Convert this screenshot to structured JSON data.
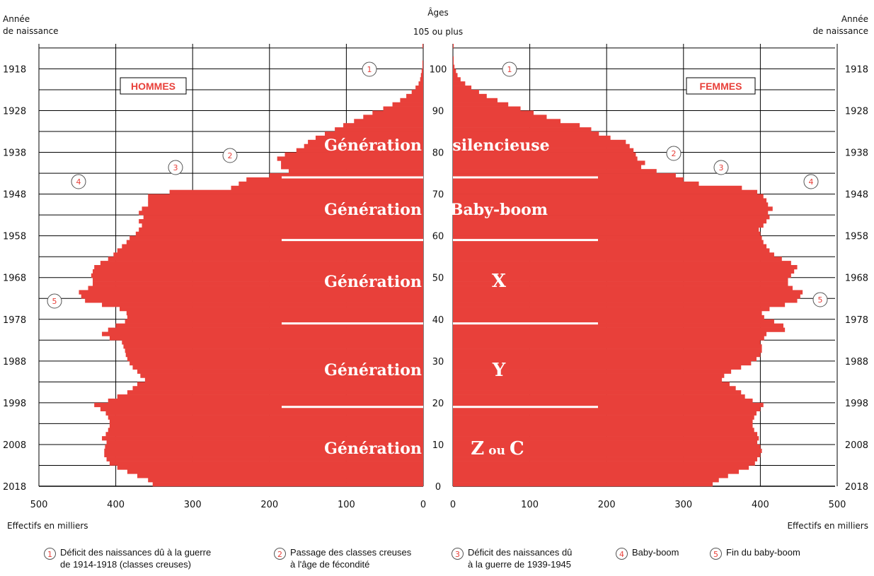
{
  "chart_data": {
    "type": "bar",
    "subtype": "population-pyramid",
    "color": "#e8403a",
    "left_label": "Année\nde naissance",
    "right_label": "Année\nde naissance",
    "center_top_label": "Âges",
    "center_top_sublabel": "105 ou plus",
    "x_label_left": "Effectifs en milliers",
    "x_label_right": "Effectifs en milliers",
    "x_ticks": [
      "500",
      "400",
      "300",
      "200",
      "100",
      "0"
    ],
    "x_ticks_right": [
      "0",
      "100",
      "200",
      "300",
      "400",
      "500"
    ],
    "xlim": [
      0,
      500
    ],
    "age_ticks": [
      "0",
      "10",
      "20",
      "30",
      "40",
      "50",
      "60",
      "70",
      "80",
      "90",
      "100"
    ],
    "year_ticks": [
      "2018",
      "2008",
      "1998",
      "1988",
      "1978",
      "1968",
      "1958",
      "1948",
      "1938",
      "1928",
      "1918"
    ],
    "ages": [
      0,
      1,
      2,
      3,
      4,
      5,
      6,
      7,
      8,
      9,
      10,
      11,
      12,
      13,
      14,
      15,
      16,
      17,
      18,
      19,
      20,
      21,
      22,
      23,
      24,
      25,
      26,
      27,
      28,
      29,
      30,
      31,
      32,
      33,
      34,
      35,
      36,
      37,
      38,
      39,
      40,
      41,
      42,
      43,
      44,
      45,
      46,
      47,
      48,
      49,
      50,
      51,
      52,
      53,
      54,
      55,
      56,
      57,
      58,
      59,
      60,
      61,
      62,
      63,
      64,
      65,
      66,
      67,
      68,
      69,
      70,
      71,
      72,
      73,
      74,
      75,
      76,
      77,
      78,
      79,
      80,
      81,
      82,
      83,
      84,
      85,
      86,
      87,
      88,
      89,
      90,
      91,
      92,
      93,
      94,
      95,
      96,
      97,
      98,
      99,
      100,
      101,
      102,
      103,
      104,
      105
    ],
    "series": [
      {
        "name": "HOMMES",
        "values": [
          352,
          358,
          372,
          385,
          398,
          408,
          412,
          415,
          415,
          414,
          412,
          418,
          413,
          410,
          408,
          408,
          410,
          413,
          420,
          428,
          410,
          398,
          385,
          378,
          372,
          362,
          368,
          372,
          378,
          382,
          385,
          387,
          388,
          390,
          392,
          408,
          418,
          410,
          400,
          388,
          385,
          386,
          395,
          418,
          440,
          445,
          448,
          436,
          430,
          430,
          432,
          430,
          428,
          420,
          410,
          403,
          398,
          392,
          386,
          382,
          374,
          370,
          366,
          370,
          364,
          370,
          366,
          358,
          358,
          358,
          330,
          250,
          240,
          230,
          200,
          175,
          185,
          185,
          190,
          180,
          165,
          155,
          150,
          140,
          128,
          115,
          104,
          90,
          78,
          66,
          52,
          40,
          30,
          22,
          15,
          10,
          6,
          4,
          3,
          2,
          1,
          1,
          0,
          0,
          0,
          1
        ]
      },
      {
        "name": "FEMMES",
        "values": [
          338,
          346,
          358,
          372,
          385,
          393,
          396,
          400,
          402,
          400,
          396,
          398,
          396,
          392,
          390,
          390,
          392,
          395,
          400,
          404,
          390,
          380,
          375,
          368,
          360,
          350,
          353,
          362,
          375,
          388,
          395,
          400,
          402,
          402,
          400,
          405,
          408,
          432,
          430,
          418,
          405,
          402,
          412,
          432,
          448,
          452,
          455,
          442,
          436,
          436,
          440,
          444,
          448,
          440,
          428,
          418,
          412,
          408,
          404,
          402,
          400,
          398,
          404,
          408,
          412,
          410,
          416,
          410,
          408,
          404,
          396,
          376,
          320,
          300,
          290,
          265,
          245,
          250,
          240,
          238,
          235,
          230,
          225,
          205,
          190,
          180,
          165,
          140,
          122,
          105,
          88,
          72,
          58,
          44,
          34,
          24,
          16,
          10,
          6,
          4,
          2,
          1,
          1,
          0,
          0,
          1
        ]
      }
    ]
  },
  "labels": {
    "hommes": "HOMMES",
    "femmes": "FEMMES",
    "generations": [
      {
        "left": "Génération",
        "right": "silencieuse"
      },
      {
        "left": "Génération",
        "right": "Baby-boom"
      },
      {
        "left": "Génération",
        "right": "X"
      },
      {
        "left": "Génération",
        "right": "Y"
      },
      {
        "left": "Génération",
        "right_main": "Z",
        "right_mid": "ou",
        "right_end": "C"
      }
    ]
  },
  "markers": [
    "1",
    "2",
    "3",
    "4",
    "5"
  ],
  "legend": [
    {
      "num": "1",
      "text": "Déficit des naissances dû à la guerre\nde 1914-1918 (classes creuses)"
    },
    {
      "num": "2",
      "text": "Passage des classes creuses\nà l'âge de fécondité"
    },
    {
      "num": "3",
      "text": "Déficit des naissances dû\nà la guerre de 1939-1945"
    },
    {
      "num": "4",
      "text": "Baby-boom"
    },
    {
      "num": "5",
      "text": "Fin du baby-boom"
    }
  ]
}
